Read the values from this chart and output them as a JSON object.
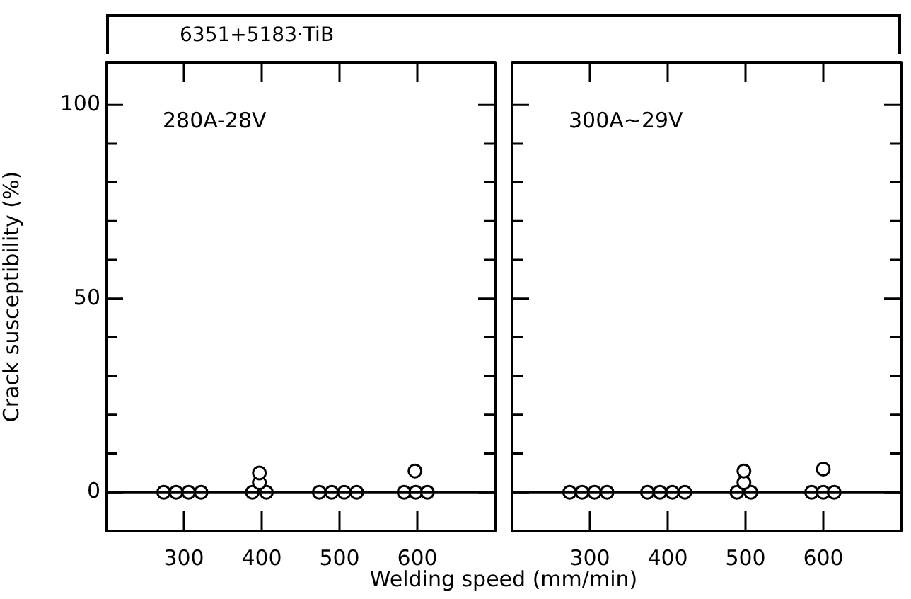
{
  "chart_data": [
    {
      "type": "scatter",
      "title": "6351+5183·TiB",
      "xlabel": "Welding speed (mm/min)",
      "ylabel": "Crack susceptibility (%)",
      "annotations": [
        "280A-28V"
      ],
      "marker": "circle",
      "series": [
        {
          "color": "#000000",
          "x": [
            274,
            290,
            306,
            322,
            388,
            406,
            397,
            397,
            474,
            490,
            506,
            522,
            583,
            598,
            613,
            597
          ],
          "values": [
            0,
            0,
            0,
            0,
            0,
            0,
            2.5,
            5,
            0,
            0,
            0,
            0,
            0,
            0,
            0,
            5.5
          ]
        }
      ],
      "xlim": [
        200,
        700
      ],
      "xticks": [
        300,
        400,
        500,
        600
      ],
      "ylim": [
        -10,
        111
      ],
      "yticks": [
        0,
        {
          "value": 10,
          "label": null
        },
        {
          "value": 20,
          "label": null
        },
        {
          "value": 30,
          "label": null
        },
        {
          "value": 40,
          "label": null
        },
        50,
        {
          "value": 60,
          "label": null
        },
        {
          "value": 70,
          "label": null
        },
        {
          "value": 80,
          "label": null
        },
        {
          "value": 90,
          "label": null
        },
        100
      ],
      "ref_lines": [
        {
          "axis": "y",
          "value": 0,
          "label": null
        }
      ]
    },
    {
      "type": "scatter",
      "annotations": [
        "300A~29V"
      ],
      "marker": "circle",
      "tick_labels": "x",
      "series": [
        {
          "color": "#000000",
          "x": [
            274,
            290,
            306,
            322,
            374,
            390,
            406,
            422,
            489,
            507,
            498,
            498,
            585,
            600,
            614,
            600
          ],
          "values": [
            0,
            0,
            0,
            0,
            0,
            0,
            0,
            0,
            0,
            0,
            2.5,
            5.5,
            0,
            0,
            0,
            6
          ]
        }
      ],
      "xlim": [
        200,
        700
      ],
      "xticks": [
        300,
        400,
        500,
        600
      ],
      "ylim": [
        -10,
        111
      ],
      "yticks": [
        0,
        {
          "value": 10,
          "label": null
        },
        {
          "value": 20,
          "label": null
        },
        {
          "value": 30,
          "label": null
        },
        {
          "value": 40,
          "label": null
        },
        50,
        {
          "value": 60,
          "label": null
        },
        {
          "value": 70,
          "label": null
        },
        {
          "value": 80,
          "label": null
        },
        {
          "value": 90,
          "label": null
        },
        100
      ],
      "ref_lines": [
        {
          "axis": "y",
          "value": 0,
          "label": null
        }
      ]
    }
  ]
}
